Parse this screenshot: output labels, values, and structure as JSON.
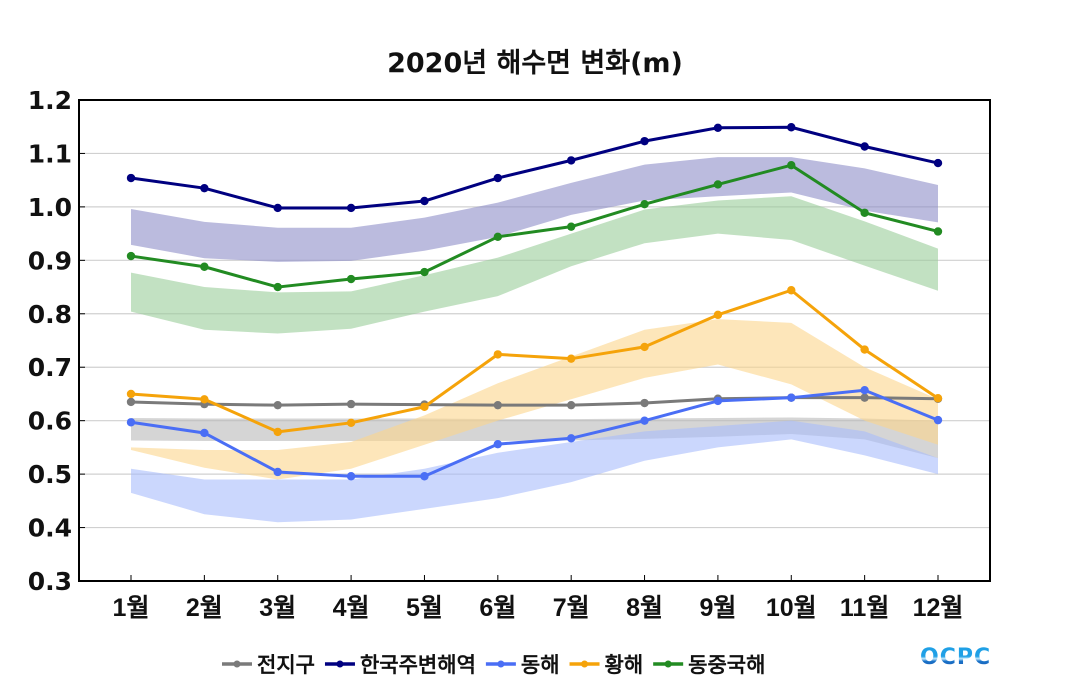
{
  "chart_data": {
    "type": "line",
    "title": "2020년 해수면 변화(m)",
    "xlabel": "",
    "ylabel": "",
    "categories": [
      "1월",
      "2월",
      "3월",
      "4월",
      "5월",
      "6월",
      "7월",
      "8월",
      "9월",
      "10월",
      "11월",
      "12월"
    ],
    "ylim": [
      0.3,
      1.2
    ],
    "yticks": [
      "1.2",
      "1.1",
      "1.0",
      "0.9",
      "0.8",
      "0.7",
      "0.6",
      "0.5",
      "0.4",
      "0.3"
    ],
    "ytick_values": [
      1.2,
      1.1,
      1.0,
      0.9,
      0.8,
      0.7,
      0.6,
      0.5,
      0.4,
      0.3
    ],
    "grid": true,
    "legend_position": "bottom",
    "series": [
      {
        "name": "전지구",
        "color": "#7a7a7a",
        "values": [
          0.635,
          0.631,
          0.629,
          0.631,
          0.63,
          0.629,
          0.629,
          0.633,
          0.641,
          0.643,
          0.643,
          0.641
        ],
        "band": {
          "color": "#b9b9b9",
          "upper": [
            0.605,
            0.604,
            0.604,
            0.604,
            0.604,
            0.603,
            0.603,
            0.604,
            0.605,
            0.606,
            0.604,
            0.6
          ],
          "lower": [
            0.563,
            0.562,
            0.562,
            0.562,
            0.562,
            0.562,
            0.563,
            0.566,
            0.57,
            0.575,
            0.565,
            0.53
          ]
        }
      },
      {
        "name": "한국주변해역",
        "color": "#000080",
        "values": [
          1.054,
          1.035,
          0.998,
          0.998,
          1.011,
          1.054,
          1.087,
          1.123,
          1.148,
          1.149,
          1.113,
          1.082
        ],
        "band": {
          "color": "#8e8ec8",
          "upper": [
            0.996,
            0.972,
            0.961,
            0.961,
            0.98,
            1.008,
            1.045,
            1.079,
            1.093,
            1.093,
            1.072,
            1.041
          ],
          "lower": [
            0.929,
            0.904,
            0.897,
            0.899,
            0.918,
            0.944,
            0.985,
            1.012,
            1.02,
            1.027,
            0.993,
            0.971
          ]
        }
      },
      {
        "name": "동해",
        "color": "#4a6ef5",
        "values": [
          0.597,
          0.577,
          0.504,
          0.496,
          0.496,
          0.556,
          0.567,
          0.6,
          0.637,
          0.643,
          0.657,
          0.601
        ],
        "band": {
          "color": "#a9bcfb",
          "upper": [
            0.51,
            0.49,
            0.49,
            0.49,
            0.51,
            0.54,
            0.56,
            0.58,
            0.59,
            0.6,
            0.58,
            0.53
          ],
          "lower": [
            0.465,
            0.425,
            0.41,
            0.415,
            0.435,
            0.455,
            0.485,
            0.525,
            0.55,
            0.565,
            0.535,
            0.5
          ]
        }
      },
      {
        "name": "황해",
        "color": "#f5a30a",
        "values": [
          0.65,
          0.64,
          0.579,
          0.596,
          0.626,
          0.724,
          0.716,
          0.738,
          0.798,
          0.844,
          0.733,
          0.642
        ],
        "band": {
          "color": "#fcd58c",
          "upper": [
            0.55,
            0.545,
            0.545,
            0.56,
            0.61,
            0.67,
            0.72,
            0.77,
            0.79,
            0.783,
            0.7,
            0.64
          ],
          "lower": [
            0.545,
            0.512,
            0.49,
            0.51,
            0.555,
            0.6,
            0.64,
            0.68,
            0.705,
            0.668,
            0.6,
            0.555
          ]
        }
      },
      {
        "name": "동중국해",
        "color": "#228b22",
        "values": [
          0.908,
          0.888,
          0.85,
          0.865,
          0.878,
          0.944,
          0.963,
          1.005,
          1.042,
          1.078,
          0.989,
          0.954
        ],
        "band": {
          "color": "#99cd99",
          "upper": [
            0.877,
            0.85,
            0.84,
            0.842,
            0.872,
            0.905,
            0.95,
            0.995,
            1.012,
            1.02,
            0.973,
            0.922
          ],
          "lower": [
            0.804,
            0.77,
            0.763,
            0.772,
            0.804,
            0.833,
            0.889,
            0.932,
            0.95,
            0.938,
            0.89,
            0.843
          ]
        }
      }
    ]
  },
  "logo": {
    "text": "OCPC"
  }
}
